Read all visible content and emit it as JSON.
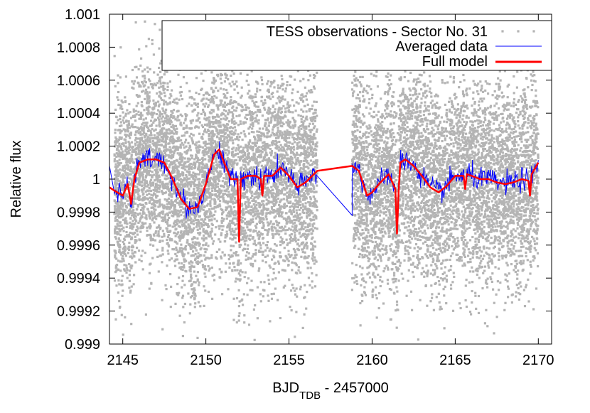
{
  "chart_data": {
    "type": "scatter",
    "xlabel": "BJD",
    "xlabel_sub": "TDB",
    "xlabel_suffix": " - 2457000",
    "ylabel": "Relative flux",
    "xlim": [
      2144.2,
      2170.8
    ],
    "ylim": [
      0.999,
      1.001
    ],
    "xticks": [
      2145,
      2150,
      2155,
      2160,
      2165,
      2170
    ],
    "xtick_labels": [
      "2145",
      "2150",
      "2155",
      "2160",
      "2165",
      "2170"
    ],
    "yticks": [
      0.999,
      0.9992,
      0.9994,
      0.9996,
      0.9998,
      1.0,
      1.0002,
      1.0004,
      1.0006,
      1.0008,
      1.001
    ],
    "ytick_labels": [
      "0.999",
      "0.9992",
      "0.9994",
      "0.9996",
      "0.9998",
      "1",
      "1.0002",
      "1.0004",
      "1.0006",
      "1.0008",
      "1.001"
    ],
    "grid": false,
    "legend_position": "top-right",
    "observation_segments": [
      [
        2144.5,
        2156.7
      ],
      [
        2158.8,
        2170.0
      ]
    ],
    "series": [
      {
        "name": "TESS observations - Sector No. 31",
        "kind": "points",
        "color": "#b4b4b4",
        "spread": 0.0004
      },
      {
        "name": "Averaged data",
        "kind": "line",
        "color": "#0000ff"
      },
      {
        "name": "Full model",
        "kind": "line",
        "color": "#ff0000",
        "x": [
          2144.2,
          2144.5,
          2145.0,
          2145.3,
          2145.5,
          2145.7,
          2146.0,
          2146.5,
          2147.0,
          2147.5,
          2148.0,
          2148.5,
          2149.0,
          2149.5,
          2150.0,
          2150.5,
          2150.8,
          2151.1,
          2151.5,
          2151.9,
          2152.0,
          2152.1,
          2152.5,
          2153.0,
          2153.3,
          2153.4,
          2153.5,
          2154.0,
          2154.5,
          2155.0,
          2155.5,
          2156.0,
          2156.7,
          2158.8,
          2159.2,
          2159.7,
          2160.0,
          2160.5,
          2161.0,
          2161.4,
          2161.5,
          2161.6,
          2161.7,
          2162.0,
          2162.5,
          2163.0,
          2163.5,
          2164.0,
          2164.5,
          2165.0,
          2165.5,
          2165.6,
          2165.7,
          2166.0,
          2166.5,
          2167.0,
          2167.5,
          2168.0,
          2168.5,
          2169.0,
          2169.4,
          2169.5,
          2169.6,
          2170.0
        ],
        "y": [
          0.99995,
          0.99993,
          0.9999,
          0.99997,
          0.99985,
          1.0,
          1.0001,
          1.00012,
          1.00012,
          1.0001,
          1.0,
          0.99988,
          0.99982,
          0.99983,
          0.99997,
          1.00015,
          1.00018,
          1.0001,
          1.0,
          1.0,
          0.99962,
          1.0,
          1.00002,
          1.00002,
          1.0,
          0.9999,
          1.00002,
          1.00002,
          1.00007,
          1.00002,
          0.99995,
          0.99998,
          1.00005,
          1.00008,
          1.00005,
          0.9999,
          0.99992,
          0.99998,
          1.00003,
          0.99994,
          0.99967,
          0.99994,
          1.0001,
          1.00012,
          1.00008,
          1.00002,
          0.99995,
          0.99992,
          0.99996,
          1.00002,
          1.00002,
          0.99994,
          1.00003,
          1.00002,
          1.0,
          1.0,
          0.99998,
          0.99997,
          0.99998,
          1.0,
          0.99999,
          0.9999,
          1.00003,
          1.0001
        ]
      }
    ]
  }
}
